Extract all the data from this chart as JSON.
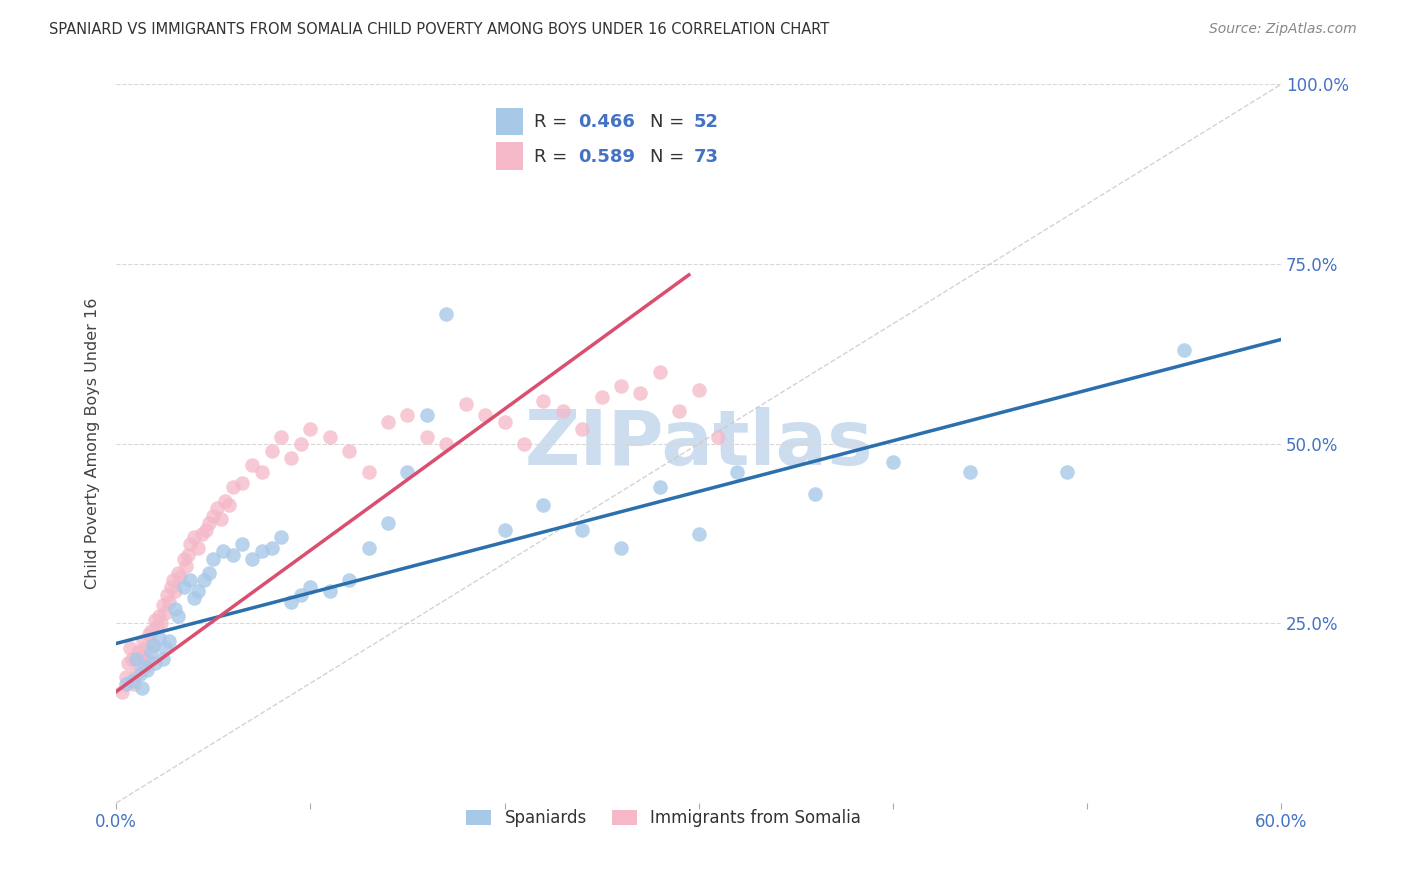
{
  "title": "SPANIARD VS IMMIGRANTS FROM SOMALIA CHILD POVERTY AMONG BOYS UNDER 16 CORRELATION CHART",
  "source": "Source: ZipAtlas.com",
  "ylabel": "Child Poverty Among Boys Under 16",
  "xlim": [
    0.0,
    0.6
  ],
  "ylim": [
    0.0,
    1.0
  ],
  "xticks": [
    0.0,
    0.1,
    0.2,
    0.3,
    0.4,
    0.5,
    0.6
  ],
  "xticklabels": [
    "0.0%",
    "",
    "",
    "",
    "",
    "",
    "60.0%"
  ],
  "yticks": [
    0.0,
    0.25,
    0.5,
    0.75,
    1.0
  ],
  "yticklabels_right": [
    "",
    "25.0%",
    "50.0%",
    "75.0%",
    "100.0%"
  ],
  "blue_color": "#a8c8e8",
  "pink_color": "#f4b8c8",
  "scatter_size": 110,
  "blue_line_color": "#2c6fad",
  "pink_line_color": "#d94f70",
  "ref_line_color": "#c8c8c8",
  "grid_color": "#d8d8d8",
  "axis_color": "#4472C4",
  "watermark": "ZIPatlas",
  "watermark_color": "#ccddf0",
  "legend_r_n": [
    {
      "R": "0.466",
      "N": "52"
    },
    {
      "R": "0.589",
      "N": "73"
    }
  ],
  "blue_line_x0": 0.0,
  "blue_line_x1": 0.6,
  "blue_line_y0": 0.222,
  "blue_line_y1": 0.645,
  "pink_line_x0": 0.0,
  "pink_line_x1": 0.295,
  "pink_line_y0": 0.155,
  "pink_line_y1": 0.735,
  "spaniards_x": [
    0.005,
    0.008,
    0.01,
    0.012,
    0.013,
    0.015,
    0.016,
    0.018,
    0.019,
    0.02,
    0.022,
    0.024,
    0.025,
    0.027,
    0.03,
    0.032,
    0.035,
    0.038,
    0.04,
    0.042,
    0.045,
    0.048,
    0.05,
    0.055,
    0.06,
    0.065,
    0.07,
    0.075,
    0.08,
    0.085,
    0.09,
    0.095,
    0.1,
    0.11,
    0.12,
    0.13,
    0.14,
    0.15,
    0.16,
    0.17,
    0.2,
    0.22,
    0.24,
    0.26,
    0.28,
    0.3,
    0.32,
    0.36,
    0.4,
    0.44,
    0.49,
    0.55
  ],
  "spaniards_y": [
    0.165,
    0.17,
    0.2,
    0.18,
    0.16,
    0.19,
    0.185,
    0.21,
    0.22,
    0.195,
    0.23,
    0.2,
    0.215,
    0.225,
    0.27,
    0.26,
    0.3,
    0.31,
    0.285,
    0.295,
    0.31,
    0.32,
    0.34,
    0.35,
    0.345,
    0.36,
    0.34,
    0.35,
    0.355,
    0.37,
    0.28,
    0.29,
    0.3,
    0.295,
    0.31,
    0.355,
    0.39,
    0.46,
    0.54,
    0.68,
    0.38,
    0.415,
    0.38,
    0.355,
    0.44,
    0.375,
    0.46,
    0.43,
    0.475,
    0.46,
    0.46,
    0.63
  ],
  "somalia_x": [
    0.003,
    0.005,
    0.006,
    0.007,
    0.008,
    0.009,
    0.01,
    0.011,
    0.012,
    0.013,
    0.014,
    0.015,
    0.016,
    0.017,
    0.018,
    0.019,
    0.02,
    0.021,
    0.022,
    0.023,
    0.024,
    0.025,
    0.026,
    0.027,
    0.028,
    0.029,
    0.03,
    0.032,
    0.033,
    0.035,
    0.036,
    0.037,
    0.038,
    0.04,
    0.042,
    0.044,
    0.046,
    0.048,
    0.05,
    0.052,
    0.054,
    0.056,
    0.058,
    0.06,
    0.065,
    0.07,
    0.075,
    0.08,
    0.085,
    0.09,
    0.095,
    0.1,
    0.11,
    0.12,
    0.13,
    0.14,
    0.15,
    0.16,
    0.17,
    0.18,
    0.19,
    0.2,
    0.21,
    0.22,
    0.23,
    0.24,
    0.25,
    0.26,
    0.27,
    0.28,
    0.29,
    0.3,
    0.31
  ],
  "somalia_y": [
    0.155,
    0.175,
    0.195,
    0.215,
    0.2,
    0.165,
    0.18,
    0.21,
    0.195,
    0.205,
    0.225,
    0.215,
    0.2,
    0.235,
    0.24,
    0.22,
    0.255,
    0.245,
    0.26,
    0.25,
    0.275,
    0.265,
    0.29,
    0.28,
    0.3,
    0.31,
    0.295,
    0.32,
    0.315,
    0.34,
    0.33,
    0.345,
    0.36,
    0.37,
    0.355,
    0.375,
    0.38,
    0.39,
    0.4,
    0.41,
    0.395,
    0.42,
    0.415,
    0.44,
    0.445,
    0.47,
    0.46,
    0.49,
    0.51,
    0.48,
    0.5,
    0.52,
    0.51,
    0.49,
    0.46,
    0.53,
    0.54,
    0.51,
    0.5,
    0.555,
    0.54,
    0.53,
    0.5,
    0.56,
    0.545,
    0.52,
    0.565,
    0.58,
    0.57,
    0.6,
    0.545,
    0.575,
    0.51
  ]
}
